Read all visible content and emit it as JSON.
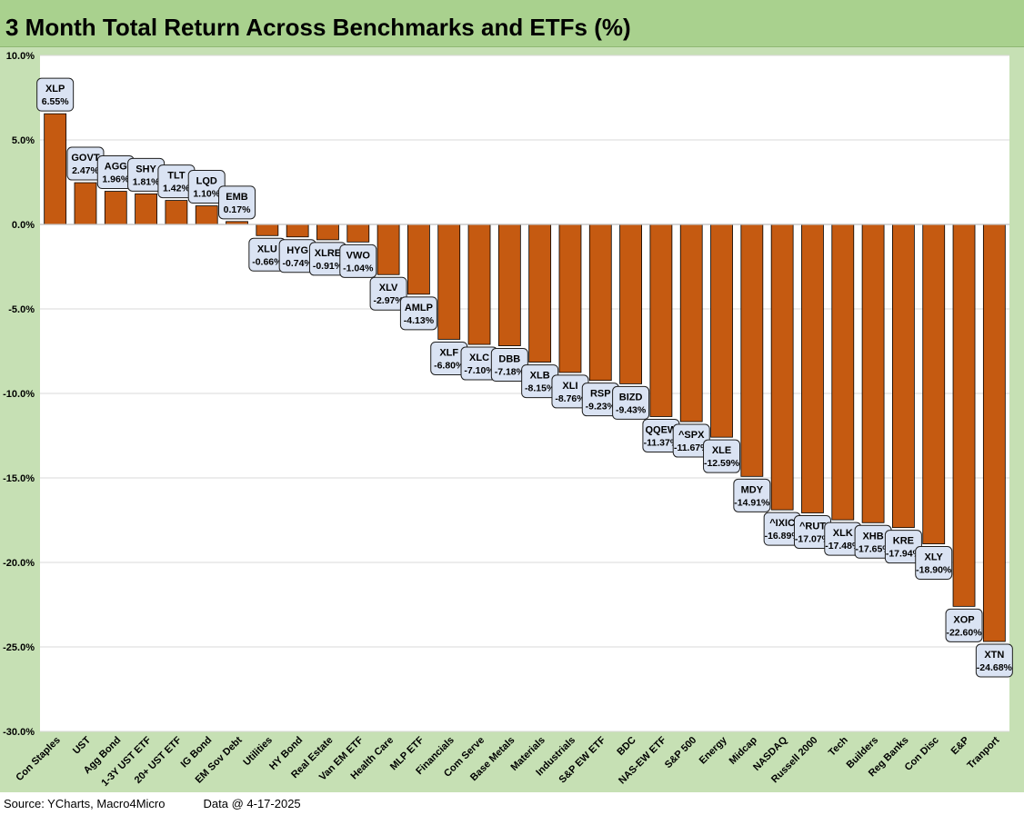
{
  "title": "3 Month Total Return Across Benchmarks and ETFs (%)",
  "footer": {
    "source": "Source: YCharts, Macro4Micro",
    "date": "Data @ 4-17-2025"
  },
  "colors": {
    "bar": "#c55a11",
    "title_bg": "#a9d18e",
    "frame_bg": "#c6e0b4",
    "label_bg": "#dae3f3"
  },
  "chart_data": {
    "type": "bar",
    "title": "3 Month Total Return Across Benchmarks and ETFs (%)",
    "xlabel": "",
    "ylabel": "",
    "ylim": [
      -30,
      10
    ],
    "yticks": [
      10,
      5,
      0,
      -5,
      -10,
      -15,
      -20,
      -25,
      -30
    ],
    "ytick_labels": [
      "10.0%",
      "5.0%",
      "0.0%",
      "-5.0%",
      "-10.0%",
      "-15.0%",
      "-20.0%",
      "-25.0%",
      "-30.0%"
    ],
    "grid": true,
    "legend": "none",
    "categories": [
      "Con Staples",
      "UST",
      "Agg Bond",
      "1-3Y UST ETF",
      "20+ UST ETF",
      "IG Bond",
      "EM Sov Debt",
      "Utilities",
      "HY Bond",
      "Real Estate",
      "Van EM ETF",
      "Health Care",
      "MLP ETF",
      "Financials",
      "Com Serve",
      "Base Metals",
      "Materials",
      "Industrials",
      "S&P EW ETF",
      "BDC",
      "NAS-EW ETF",
      "S&P 500",
      "Energy",
      "Midcap",
      "NASDAQ",
      "Russell 2000",
      "Tech",
      "Builders",
      "Reg Banks",
      "Con Disc",
      "E&P",
      "Tranport"
    ],
    "tickers": [
      "XLP",
      "GOVT",
      "AGG",
      "SHY",
      "TLT",
      "LQD",
      "EMB",
      "XLU",
      "HYG",
      "XLRE",
      "VWO",
      "XLV",
      "AMLP",
      "XLF",
      "XLC",
      "DBB",
      "XLB",
      "XLI",
      "RSP",
      "BIZD",
      "QQEW",
      "^SPX",
      "XLE",
      "MDY",
      "^IXIC",
      "^RUT",
      "XLK",
      "XHB",
      "KRE",
      "XLY",
      "XOP",
      "XTN"
    ],
    "values": [
      6.55,
      2.47,
      1.96,
      1.81,
      1.42,
      1.1,
      0.17,
      -0.66,
      -0.74,
      -0.91,
      -1.04,
      -2.97,
      -4.13,
      -6.8,
      -7.1,
      -7.18,
      -8.15,
      -8.76,
      -9.23,
      -9.43,
      -11.37,
      -11.67,
      -12.59,
      -14.91,
      -16.89,
      -17.07,
      -17.48,
      -17.65,
      -17.94,
      -18.9,
      -22.6,
      -24.68
    ],
    "data_labels": [
      "6.55%",
      "2.47%",
      "1.96%",
      "1.81%",
      "1.42%",
      "1.10%",
      "0.17%",
      "-0.66%",
      "-0.74%",
      "-0.91%",
      "-1.04%",
      "-2.97%",
      "-4.13%",
      "-6.80%",
      "-7.10%",
      "-7.18%",
      "-8.15%",
      "-8.76%",
      "-9.23%",
      "-9.43%",
      "-11.37%",
      "-11.67%",
      "-12.59%",
      "-14.91%",
      "-16.89%",
      "-17.07%",
      "-17.48%",
      "-17.65%",
      "-17.94%",
      "-18.90%",
      "-22.60%",
      "-24.68%"
    ]
  }
}
